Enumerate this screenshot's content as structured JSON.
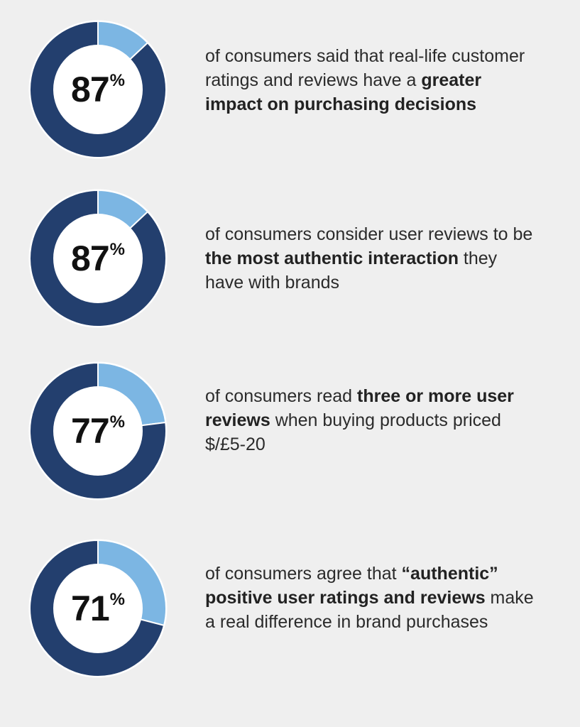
{
  "colors": {
    "background": "#efefef",
    "share": "#7cb6e3",
    "remainder": "#233f6e",
    "center": "#ffffff",
    "text": "#2b2b2b"
  },
  "stats": [
    {
      "value": "87",
      "symbol": "%",
      "segments": [
        {
          "text": "of consumers said that real-life customer ratings and reviews have a ",
          "bold": false
        },
        {
          "text": "greater impact on purchasing decisions",
          "bold": true
        }
      ]
    },
    {
      "value": "87",
      "symbol": "%",
      "segments": [
        {
          "text": "of consumers consider user reviews to be ",
          "bold": false
        },
        {
          "text": "the most authentic interaction",
          "bold": true
        },
        {
          "text": " they have with brands",
          "bold": false
        }
      ]
    },
    {
      "value": "77",
      "symbol": "%",
      "segments": [
        {
          "text": "of consumers read ",
          "bold": false
        },
        {
          "text": "three or more user reviews",
          "bold": true
        },
        {
          "text": " when buying products priced",
          "bold": false
        },
        {
          "text": "\n",
          "bold": false
        },
        {
          "text": "$/£5-20",
          "bold": false
        }
      ]
    },
    {
      "value": "71",
      "symbol": "%",
      "segments": [
        {
          "text": "of consumers agree that ",
          "bold": false
        },
        {
          "text": "“authentic” positive user ratings and reviews",
          "bold": true
        },
        {
          "text": " make a real difference in brand purchases",
          "bold": false
        }
      ]
    }
  ],
  "chart_data": [
    {
      "type": "pie",
      "style": "donut",
      "values": [
        87,
        13
      ],
      "labels": [
        "87%",
        ""
      ]
    },
    {
      "type": "pie",
      "style": "donut",
      "values": [
        87,
        13
      ],
      "labels": [
        "87%",
        ""
      ]
    },
    {
      "type": "pie",
      "style": "donut",
      "values": [
        77,
        23
      ],
      "labels": [
        "77%",
        ""
      ]
    },
    {
      "type": "pie",
      "style": "donut",
      "values": [
        71,
        29
      ],
      "labels": [
        "71%",
        ""
      ]
    }
  ]
}
